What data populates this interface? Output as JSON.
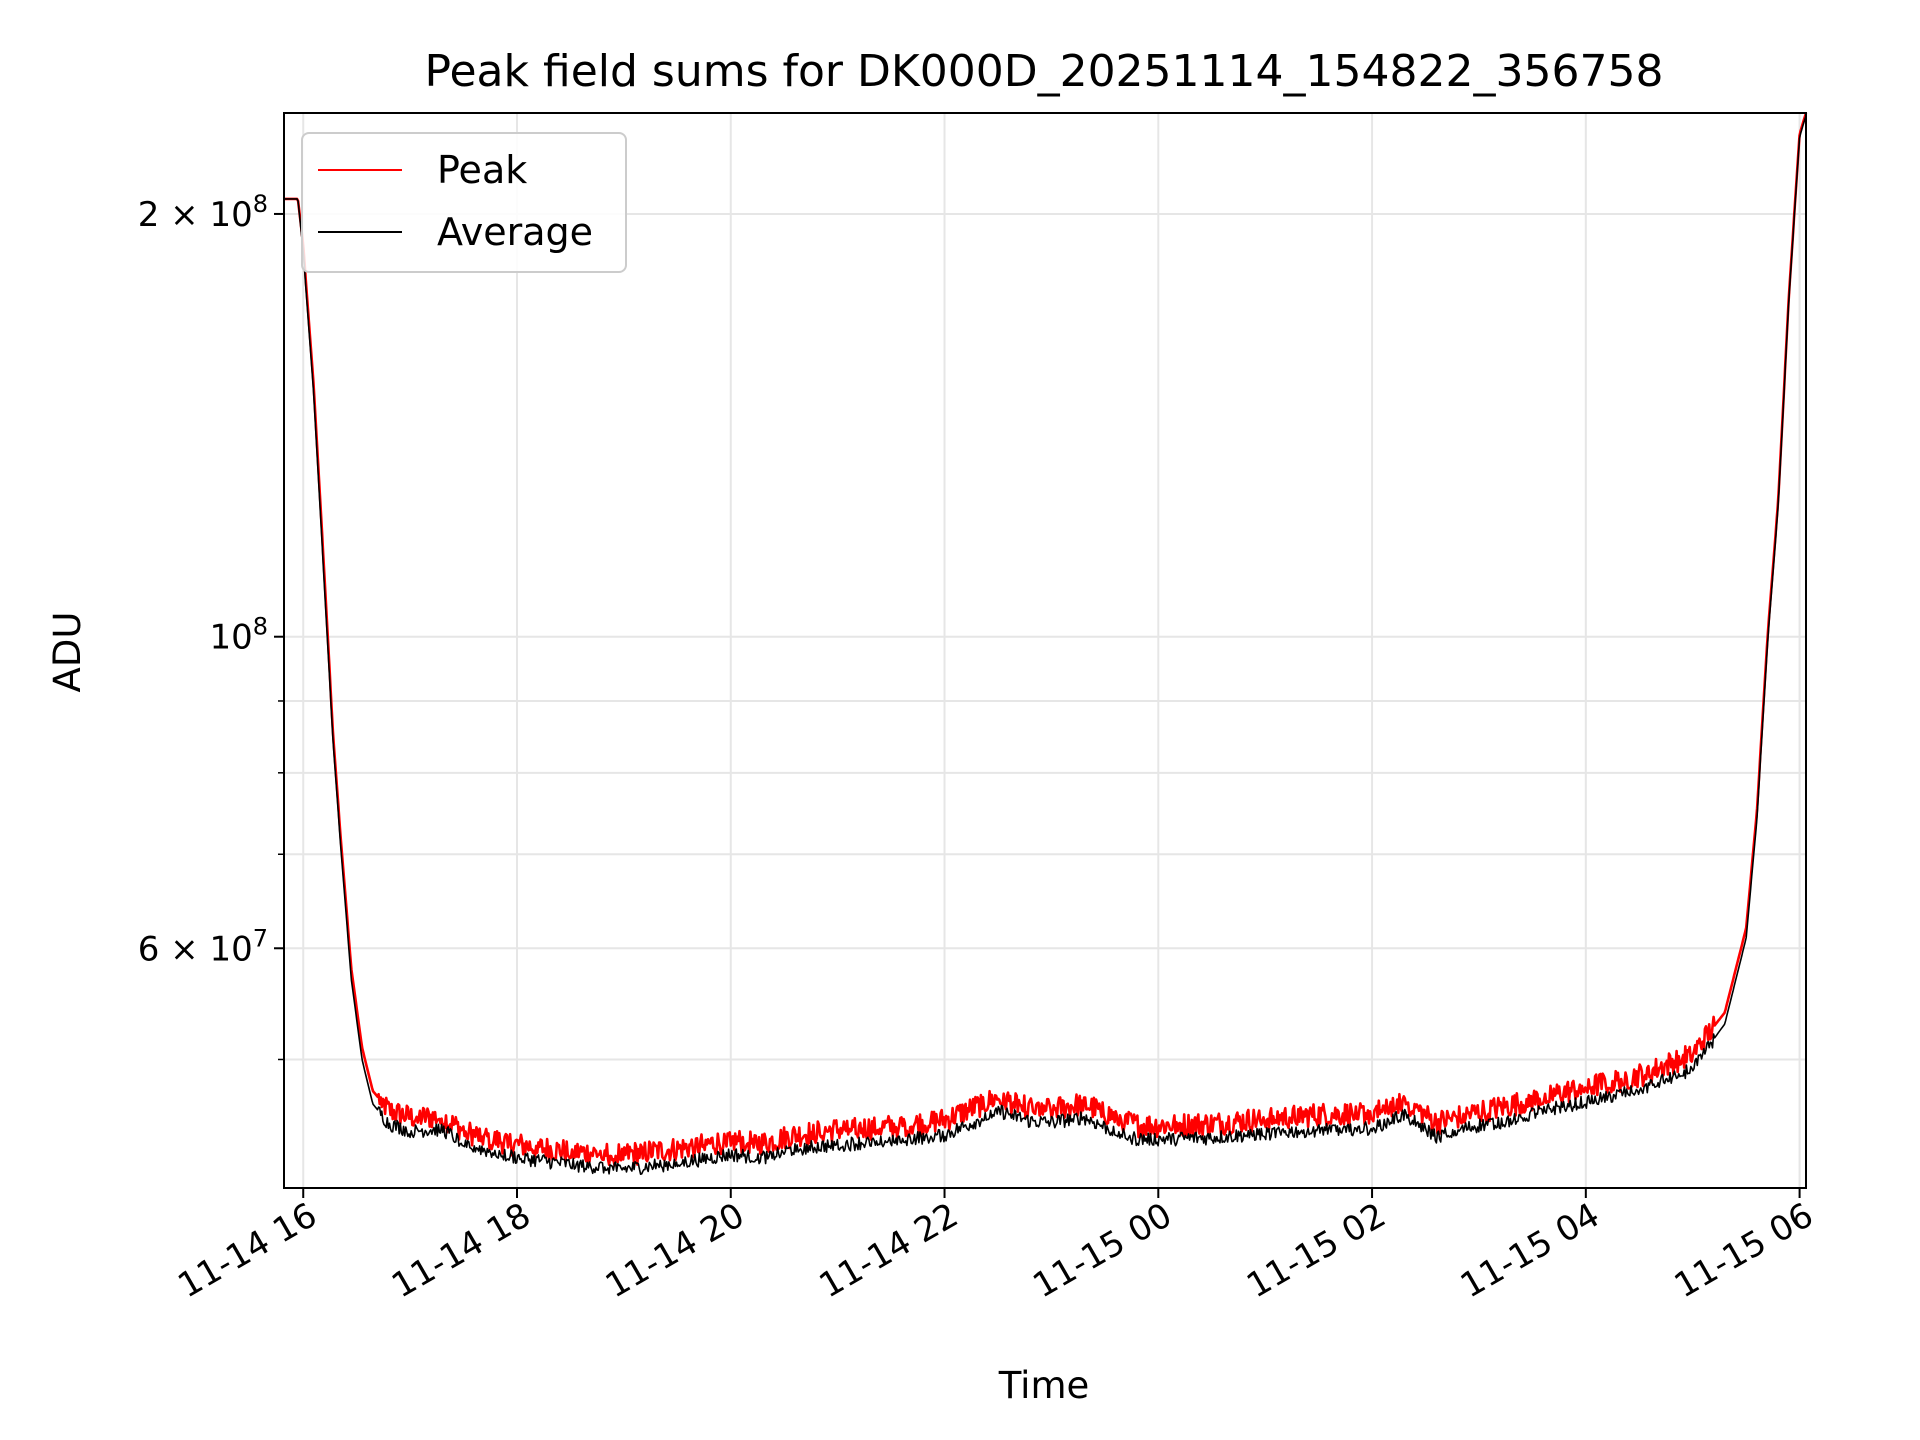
{
  "chart_data": {
    "type": "line",
    "title": "Peak field sums for DK000D_20251114_154822_356758",
    "xlabel": "Time",
    "ylabel": "ADU",
    "yscale": "log",
    "ylim": [
      40500000,
      236000000
    ],
    "xlim_hours": [
      15.82,
      30.06
    ],
    "x_unit": "hours since 2025-11-14 00:00",
    "grid": true,
    "legend_position": "upper-left",
    "x_ticks": [
      {
        "hour": 16,
        "label": "11-14 16"
      },
      {
        "hour": 18,
        "label": "11-14 18"
      },
      {
        "hour": 20,
        "label": "11-14 20"
      },
      {
        "hour": 22,
        "label": "11-14 22"
      },
      {
        "hour": 24,
        "label": "11-15 00"
      },
      {
        "hour": 26,
        "label": "11-15 02"
      },
      {
        "hour": 28,
        "label": "11-15 04"
      },
      {
        "hour": 30,
        "label": "11-15 06"
      }
    ],
    "y_major_ticks": [
      {
        "value": 200000000,
        "mantissa": "2",
        "times": "×",
        "base": "10",
        "exp": "8"
      },
      {
        "value": 100000000,
        "mantissa": "",
        "times": "",
        "base": "10",
        "exp": "8"
      },
      {
        "value": 60000000,
        "mantissa": "6",
        "times": "×",
        "base": "10",
        "exp": "7"
      }
    ],
    "y_minor_grid": [
      50000000,
      70000000,
      80000000,
      90000000
    ],
    "series": [
      {
        "name": "Peak",
        "color": "#ff0000",
        "x": [
          15.82,
          15.95,
          16.0,
          16.1,
          16.2,
          16.28,
          16.35,
          16.45,
          16.55,
          16.65,
          16.8,
          17.0,
          17.3,
          17.5,
          17.7,
          18.0,
          18.5,
          19.0,
          19.5,
          20.0,
          20.3,
          20.6,
          21.0,
          21.5,
          22.0,
          22.3,
          22.5,
          22.8,
          23.0,
          23.3,
          23.6,
          23.8,
          24.0,
          24.5,
          25.0,
          25.5,
          26.0,
          26.3,
          26.6,
          27.0,
          27.3,
          27.6,
          28.0,
          28.3,
          28.6,
          29.0,
          29.3,
          29.5,
          29.6,
          29.7,
          29.8,
          29.9,
          30.0,
          30.06
        ],
        "y": [
          205000000,
          205000000,
          190000000,
          150000000,
          110000000,
          85000000,
          72000000,
          58000000,
          51000000,
          47500000,
          46000000,
          45500000,
          45500000,
          44500000,
          44000000,
          43500000,
          43000000,
          42800000,
          43200000,
          43800000,
          43600000,
          44200000,
          44600000,
          44800000,
          45300000,
          46300000,
          47000000,
          46200000,
          46100000,
          46500000,
          45500000,
          44900000,
          44900000,
          45000000,
          45400000,
          45700000,
          45800000,
          46800000,
          45100000,
          45900000,
          46400000,
          47000000,
          47800000,
          48300000,
          49000000,
          50500000,
          54000000,
          62000000,
          75000000,
          100000000,
          125000000,
          175000000,
          228000000,
          236000000
        ]
      },
      {
        "name": "Average",
        "color": "#000000",
        "x": [
          15.82,
          15.95,
          16.0,
          16.1,
          16.2,
          16.28,
          16.35,
          16.45,
          16.55,
          16.65,
          16.8,
          17.0,
          17.3,
          17.5,
          17.7,
          18.0,
          18.5,
          19.0,
          19.5,
          20.0,
          20.3,
          20.6,
          21.0,
          21.5,
          22.0,
          22.3,
          22.5,
          22.8,
          23.0,
          23.3,
          23.6,
          23.8,
          24.0,
          24.5,
          25.0,
          25.5,
          26.0,
          26.3,
          26.6,
          27.0,
          27.3,
          27.6,
          28.0,
          28.3,
          28.6,
          29.0,
          29.3,
          29.5,
          29.6,
          29.7,
          29.8,
          29.9,
          30.0,
          30.06
        ],
        "y": [
          205000000,
          205000000,
          188000000,
          148000000,
          108000000,
          84000000,
          71000000,
          57000000,
          50000000,
          46500000,
          45000000,
          44500000,
          44600000,
          43600000,
          43100000,
          42600000,
          42100000,
          41800000,
          42200000,
          42800000,
          42600000,
          43200000,
          43500000,
          43800000,
          44200000,
          45200000,
          46000000,
          45200000,
          45100000,
          45500000,
          44400000,
          43900000,
          43900000,
          44000000,
          44300000,
          44600000,
          44700000,
          45700000,
          44100000,
          44900000,
          45300000,
          46000000,
          46700000,
          47200000,
          47900000,
          49300000,
          53000000,
          61000000,
          74000000,
          99000000,
          124000000,
          174000000,
          227000000,
          235000000
        ]
      }
    ]
  }
}
